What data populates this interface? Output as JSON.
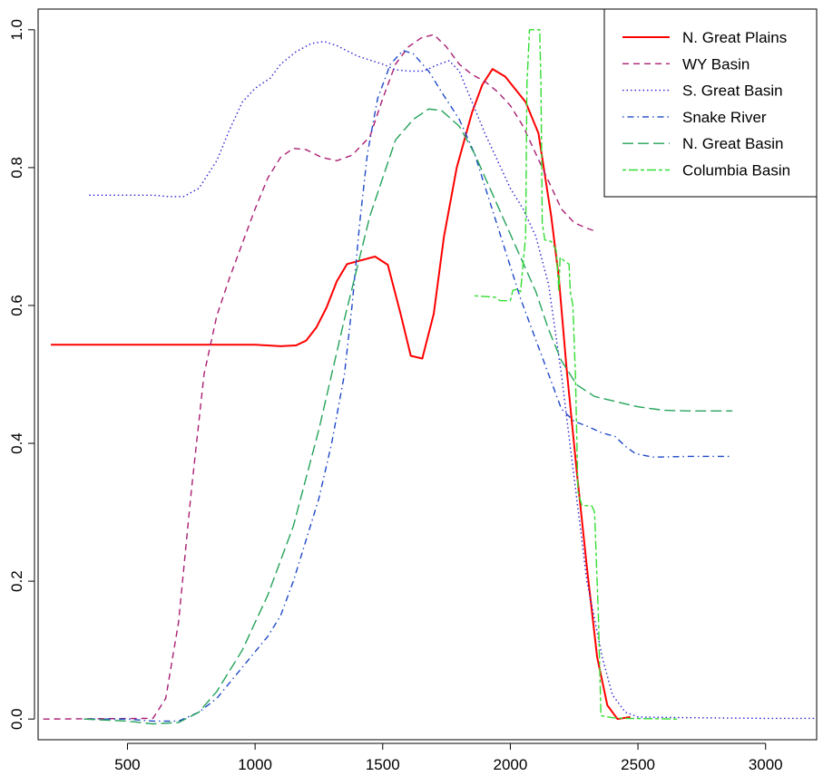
{
  "chart_data": {
    "type": "line",
    "title": "",
    "xlabel": "",
    "ylabel": "",
    "xlim": [
      150,
      3200
    ],
    "ylim": [
      -0.03,
      1.03
    ],
    "x_ticks": [
      500,
      1000,
      1500,
      2000,
      2500,
      3000
    ],
    "y_ticks": [
      0.0,
      0.2,
      0.4,
      0.6,
      0.8,
      1.0
    ],
    "x_tick_labels": [
      "500",
      "1000",
      "1500",
      "2000",
      "2500",
      "3000"
    ],
    "y_tick_labels": [
      "0.0",
      "0.2",
      "0.4",
      "0.6",
      "0.8",
      "1.0"
    ],
    "grid": false,
    "legend_position": "top-right",
    "series": [
      {
        "name": "N. Great Plains",
        "color": "#ff0000",
        "dash": "solid",
        "points": [
          [
            200,
            0.543
          ],
          [
            1000,
            0.543
          ],
          [
            1100,
            0.541
          ],
          [
            1160,
            0.542
          ],
          [
            1200,
            0.549
          ],
          [
            1240,
            0.568
          ],
          [
            1280,
            0.597
          ],
          [
            1320,
            0.635
          ],
          [
            1360,
            0.66
          ],
          [
            1400,
            0.664
          ],
          [
            1470,
            0.671
          ],
          [
            1520,
            0.659
          ],
          [
            1570,
            0.588
          ],
          [
            1610,
            0.527
          ],
          [
            1655,
            0.523
          ],
          [
            1700,
            0.588
          ],
          [
            1740,
            0.7
          ],
          [
            1790,
            0.8
          ],
          [
            1850,
            0.88
          ],
          [
            1890,
            0.92
          ],
          [
            1930,
            0.943
          ],
          [
            1980,
            0.932
          ],
          [
            2060,
            0.895
          ],
          [
            2110,
            0.85
          ],
          [
            2160,
            0.73
          ],
          [
            2190,
            0.64
          ],
          [
            2220,
            0.51
          ],
          [
            2260,
            0.36
          ],
          [
            2300,
            0.22
          ],
          [
            2340,
            0.09
          ],
          [
            2380,
            0.02
          ],
          [
            2420,
            0.0
          ],
          [
            2470,
            0.003
          ]
        ]
      },
      {
        "name": "WY Basin",
        "color": "#aa1e74",
        "dash": "dashed",
        "points": [
          [
            170,
            0.0
          ],
          [
            600,
            0.001
          ],
          [
            650,
            0.03
          ],
          [
            700,
            0.14
          ],
          [
            750,
            0.33
          ],
          [
            800,
            0.5
          ],
          [
            850,
            0.585
          ],
          [
            900,
            0.64
          ],
          [
            950,
            0.69
          ],
          [
            1000,
            0.74
          ],
          [
            1050,
            0.785
          ],
          [
            1100,
            0.815
          ],
          [
            1150,
            0.828
          ],
          [
            1200,
            0.826
          ],
          [
            1260,
            0.815
          ],
          [
            1320,
            0.81
          ],
          [
            1380,
            0.818
          ],
          [
            1450,
            0.845
          ],
          [
            1500,
            0.9
          ],
          [
            1550,
            0.95
          ],
          [
            1600,
            0.975
          ],
          [
            1650,
            0.988
          ],
          [
            1700,
            0.993
          ],
          [
            1750,
            0.975
          ],
          [
            1800,
            0.95
          ],
          [
            1850,
            0.935
          ],
          [
            1900,
            0.925
          ],
          [
            1950,
            0.91
          ],
          [
            2000,
            0.89
          ],
          [
            2050,
            0.86
          ],
          [
            2100,
            0.82
          ],
          [
            2150,
            0.78
          ],
          [
            2200,
            0.74
          ],
          [
            2250,
            0.72
          ],
          [
            2300,
            0.712
          ],
          [
            2340,
            0.707
          ]
        ]
      },
      {
        "name": "S. Great Basin",
        "color": "#2b22d2",
        "dash": "dotted",
        "points": [
          [
            350,
            0.76
          ],
          [
            600,
            0.76
          ],
          [
            660,
            0.758
          ],
          [
            720,
            0.758
          ],
          [
            780,
            0.77
          ],
          [
            850,
            0.81
          ],
          [
            900,
            0.855
          ],
          [
            950,
            0.895
          ],
          [
            1000,
            0.915
          ],
          [
            1060,
            0.93
          ],
          [
            1100,
            0.95
          ],
          [
            1160,
            0.968
          ],
          [
            1220,
            0.98
          ],
          [
            1270,
            0.983
          ],
          [
            1320,
            0.977
          ],
          [
            1400,
            0.962
          ],
          [
            1500,
            0.95
          ],
          [
            1550,
            0.942
          ],
          [
            1600,
            0.94
          ],
          [
            1660,
            0.94
          ],
          [
            1720,
            0.95
          ],
          [
            1760,
            0.955
          ],
          [
            1800,
            0.94
          ],
          [
            1850,
            0.895
          ],
          [
            1900,
            0.85
          ],
          [
            1950,
            0.81
          ],
          [
            2000,
            0.77
          ],
          [
            2050,
            0.74
          ],
          [
            2100,
            0.7
          ],
          [
            2150,
            0.63
          ],
          [
            2200,
            0.5
          ],
          [
            2250,
            0.35
          ],
          [
            2300,
            0.2
          ],
          [
            2360,
            0.09
          ],
          [
            2400,
            0.035
          ],
          [
            2450,
            0.01
          ],
          [
            2500,
            0.003
          ],
          [
            2700,
            0.002
          ],
          [
            3000,
            0.001
          ],
          [
            3190,
            0.001
          ]
        ]
      },
      {
        "name": "Snake River",
        "color": "#1f49c8",
        "dash": "dashdot",
        "points": [
          [
            330,
            0.0
          ],
          [
            500,
            0.0
          ],
          [
            600,
            -0.003
          ],
          [
            700,
            -0.003
          ],
          [
            780,
            0.01
          ],
          [
            850,
            0.03
          ],
          [
            950,
            0.075
          ],
          [
            1050,
            0.12
          ],
          [
            1100,
            0.15
          ],
          [
            1150,
            0.2
          ],
          [
            1200,
            0.26
          ],
          [
            1250,
            0.32
          ],
          [
            1300,
            0.4
          ],
          [
            1350,
            0.5
          ],
          [
            1380,
            0.6
          ],
          [
            1410,
            0.72
          ],
          [
            1440,
            0.82
          ],
          [
            1480,
            0.9
          ],
          [
            1530,
            0.95
          ],
          [
            1580,
            0.97
          ],
          [
            1620,
            0.965
          ],
          [
            1680,
            0.94
          ],
          [
            1730,
            0.91
          ],
          [
            1800,
            0.87
          ],
          [
            1860,
            0.82
          ],
          [
            1920,
            0.75
          ],
          [
            1980,
            0.68
          ],
          [
            2040,
            0.61
          ],
          [
            2100,
            0.55
          ],
          [
            2160,
            0.49
          ],
          [
            2200,
            0.45
          ],
          [
            2250,
            0.432
          ],
          [
            2300,
            0.425
          ],
          [
            2360,
            0.415
          ],
          [
            2410,
            0.41
          ],
          [
            2450,
            0.396
          ],
          [
            2490,
            0.385
          ],
          [
            2560,
            0.38
          ],
          [
            2700,
            0.381
          ],
          [
            2870,
            0.381
          ]
        ]
      },
      {
        "name": "N. Great Basin",
        "color": "#24a35a",
        "dash": "longdash",
        "points": [
          [
            330,
            0.0
          ],
          [
            500,
            -0.003
          ],
          [
            600,
            -0.007
          ],
          [
            700,
            -0.005
          ],
          [
            780,
            0.01
          ],
          [
            850,
            0.04
          ],
          [
            950,
            0.1
          ],
          [
            1050,
            0.18
          ],
          [
            1150,
            0.28
          ],
          [
            1250,
            0.42
          ],
          [
            1350,
            0.58
          ],
          [
            1450,
            0.73
          ],
          [
            1550,
            0.84
          ],
          [
            1620,
            0.87
          ],
          [
            1680,
            0.885
          ],
          [
            1730,
            0.883
          ],
          [
            1800,
            0.86
          ],
          [
            1860,
            0.82
          ],
          [
            1920,
            0.77
          ],
          [
            1980,
            0.72
          ],
          [
            2040,
            0.67
          ],
          [
            2100,
            0.62
          ],
          [
            2150,
            0.565
          ],
          [
            2200,
            0.52
          ],
          [
            2260,
            0.485
          ],
          [
            2330,
            0.468
          ],
          [
            2420,
            0.46
          ],
          [
            2500,
            0.453
          ],
          [
            2600,
            0.448
          ],
          [
            2700,
            0.447
          ],
          [
            2870,
            0.447
          ]
        ]
      },
      {
        "name": "Columbia Basin",
        "color": "#33dd33",
        "dash": "twodash",
        "points": [
          [
            1860,
            0.614
          ],
          [
            1940,
            0.612
          ],
          [
            1960,
            0.607
          ],
          [
            2000,
            0.607
          ],
          [
            2010,
            0.622
          ],
          [
            2030,
            0.624
          ],
          [
            2040,
            0.62
          ],
          [
            2060,
            0.7
          ],
          [
            2065,
            0.92
          ],
          [
            2075,
            1.0
          ],
          [
            2115,
            1.0
          ],
          [
            2120,
            0.92
          ],
          [
            2125,
            0.72
          ],
          [
            2135,
            0.695
          ],
          [
            2160,
            0.693
          ],
          [
            2180,
            0.68
          ],
          [
            2190,
            0.62
          ],
          [
            2195,
            0.67
          ],
          [
            2210,
            0.665
          ],
          [
            2230,
            0.66
          ],
          [
            2235,
            0.62
          ],
          [
            2245,
            0.6
          ],
          [
            2255,
            0.5
          ],
          [
            2265,
            0.33
          ],
          [
            2280,
            0.31
          ],
          [
            2320,
            0.309
          ],
          [
            2330,
            0.3
          ],
          [
            2345,
            0.15
          ],
          [
            2355,
            0.005
          ],
          [
            2400,
            0.002
          ],
          [
            2450,
            0.001
          ],
          [
            2660,
            0.0
          ]
        ]
      }
    ]
  }
}
